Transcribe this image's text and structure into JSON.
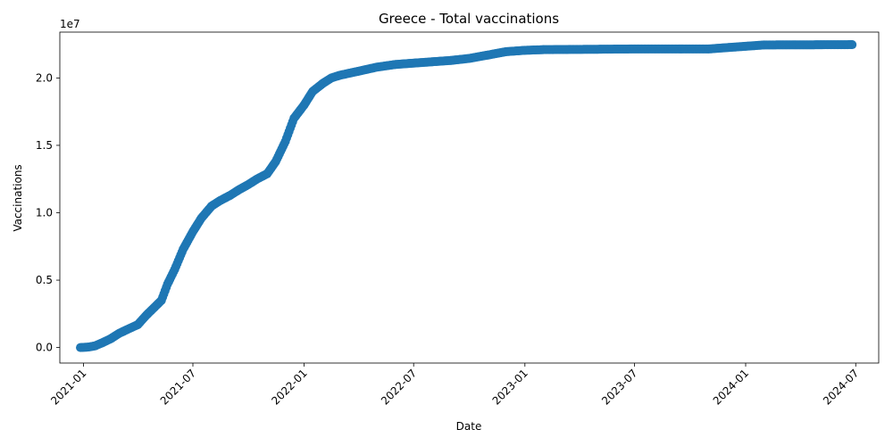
{
  "chart_data": {
    "type": "scatter",
    "title": "Greece - Total vaccinations",
    "xlabel": "Date",
    "ylabel": "Vaccinations",
    "y_offset_label": "1e7",
    "y_scale": 10000000,
    "xlim": [
      "2020-11-23",
      "2024-08-08"
    ],
    "ylim": [
      -1150000,
      23400000
    ],
    "x_ticks": [
      "2021-01",
      "2021-07",
      "2022-01",
      "2022-07",
      "2023-01",
      "2023-07",
      "2024-01",
      "2024-07"
    ],
    "y_ticks": [
      0.0,
      0.5,
      1.0,
      1.5,
      2.0
    ],
    "color": "#1f77b4",
    "series": [
      {
        "name": "Total vaccinations",
        "points": [
          [
            "2020-12-27",
            0
          ],
          [
            "2021-01-10",
            40000
          ],
          [
            "2021-01-20",
            120000
          ],
          [
            "2021-02-01",
            350000
          ],
          [
            "2021-02-15",
            650000
          ],
          [
            "2021-03-01",
            1050000
          ],
          [
            "2021-03-15",
            1350000
          ],
          [
            "2021-04-01",
            1700000
          ],
          [
            "2021-04-15",
            2400000
          ],
          [
            "2021-05-01",
            3100000
          ],
          [
            "2021-05-10",
            3500000
          ],
          [
            "2021-05-20",
            4700000
          ],
          [
            "2021-06-01",
            5800000
          ],
          [
            "2021-06-15",
            7300000
          ],
          [
            "2021-07-01",
            8600000
          ],
          [
            "2021-07-15",
            9600000
          ],
          [
            "2021-08-01",
            10500000
          ],
          [
            "2021-08-15",
            10900000
          ],
          [
            "2021-09-01",
            11300000
          ],
          [
            "2021-09-15",
            11700000
          ],
          [
            "2021-10-01",
            12100000
          ],
          [
            "2021-10-15",
            12500000
          ],
          [
            "2021-11-01",
            12900000
          ],
          [
            "2021-11-15",
            13800000
          ],
          [
            "2021-12-01",
            15300000
          ],
          [
            "2021-12-15",
            17000000
          ],
          [
            "2022-01-01",
            18000000
          ],
          [
            "2022-01-15",
            19000000
          ],
          [
            "2022-02-01",
            19600000
          ],
          [
            "2022-02-15",
            20000000
          ],
          [
            "2022-03-01",
            20200000
          ],
          [
            "2022-04-01",
            20500000
          ],
          [
            "2022-05-01",
            20800000
          ],
          [
            "2022-06-01",
            21000000
          ],
          [
            "2022-07-01",
            21100000
          ],
          [
            "2022-08-01",
            21200000
          ],
          [
            "2022-09-01",
            21300000
          ],
          [
            "2022-10-01",
            21450000
          ],
          [
            "2022-11-01",
            21700000
          ],
          [
            "2022-12-01",
            21950000
          ],
          [
            "2023-01-01",
            22050000
          ],
          [
            "2023-02-01",
            22100000
          ],
          [
            "2023-07-01",
            22150000
          ],
          [
            "2023-11-01",
            22150000
          ],
          [
            "2023-12-01",
            22250000
          ],
          [
            "2024-01-01",
            22350000
          ],
          [
            "2024-02-01",
            22450000
          ],
          [
            "2024-06-25",
            22470000
          ]
        ]
      }
    ]
  }
}
